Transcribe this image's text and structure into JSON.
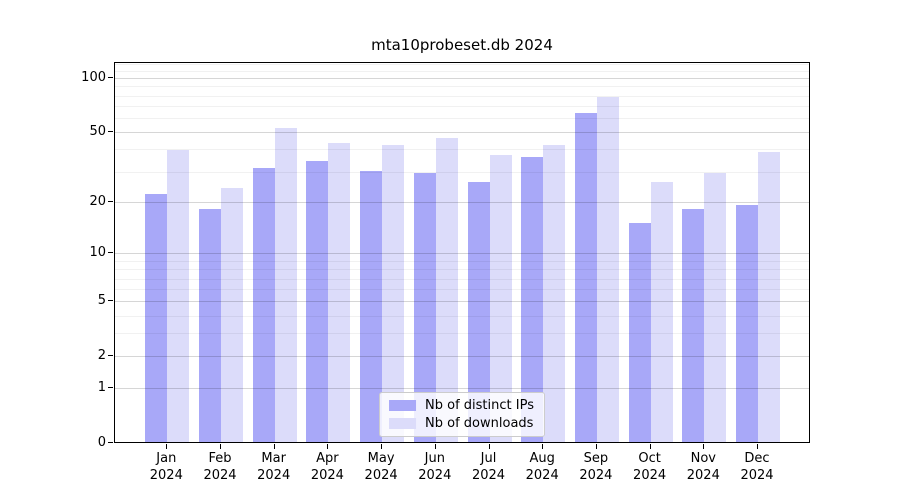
{
  "title": "mta10probeset.db 2024",
  "chart_data": {
    "type": "bar",
    "categories": [
      "Jan 2024",
      "Feb 2024",
      "Mar 2024",
      "Apr 2024",
      "May 2024",
      "Jun 2024",
      "Jul 2024",
      "Aug 2024",
      "Sep 2024",
      "Oct 2024",
      "Nov 2024",
      "Dec 2024"
    ],
    "category_line1": [
      "Jan",
      "Feb",
      "Mar",
      "Apr",
      "May",
      "Jun",
      "Jul",
      "Aug",
      "Sep",
      "Oct",
      "Nov",
      "Dec"
    ],
    "category_line2": "2024",
    "series": [
      {
        "name": "Nb of distinct IPs",
        "color": "#a8a8f8",
        "values": [
          22,
          18,
          31,
          34,
          30,
          29,
          26,
          36,
          63,
          15,
          18,
          19
        ]
      },
      {
        "name": "Nb of downloads",
        "color": "#dcdcfa",
        "values": [
          39,
          24,
          52,
          43,
          42,
          46,
          37,
          42,
          78,
          26,
          29,
          38
        ]
      }
    ],
    "yscale": "log1p",
    "yticks": [
      0,
      1,
      2,
      5,
      10,
      20,
      50,
      100
    ],
    "yticks_minor": [
      3,
      4,
      6,
      7,
      8,
      9,
      30,
      40,
      60,
      70,
      80,
      90,
      110,
      120
    ],
    "ylim": [
      0,
      123
    ],
    "xlabel": "",
    "ylabel": "",
    "grid": true,
    "legend_position": "lower center",
    "axis_color": "#000000",
    "background_color": "#ffffff"
  }
}
